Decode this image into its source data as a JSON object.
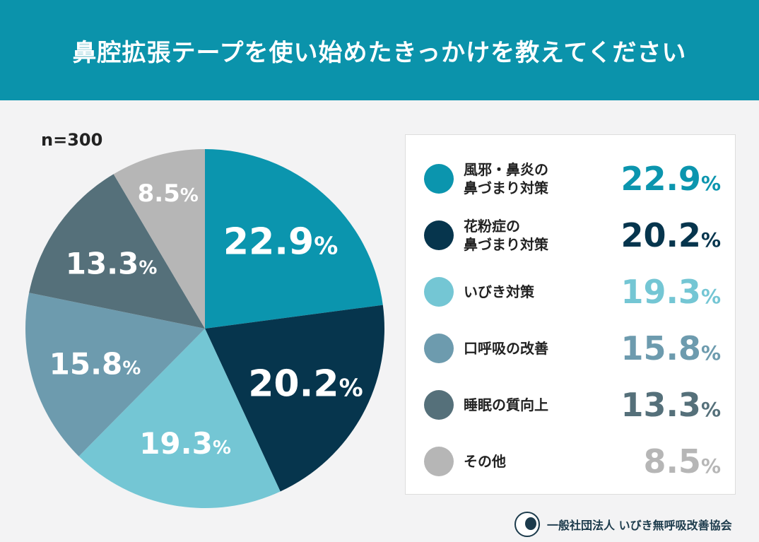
{
  "header": {
    "title": "鼻腔拡張テープを使い始めたきっかけを教えてください"
  },
  "sample": "n=300",
  "chart_data": {
    "type": "pie",
    "title": "鼻腔拡張テープを使い始めたきっかけを教えてください",
    "categories": [
      "風邪・鼻炎の\n鼻づまり対策",
      "花粉症の\n鼻づまり対策",
      "いびき対策",
      "口呼吸の改善",
      "睡眠の質向上",
      "その他"
    ],
    "values": [
      22.9,
      20.2,
      19.3,
      15.8,
      13.3,
      8.5
    ],
    "labels": [
      "22.9",
      "20.2",
      "19.3",
      "15.8",
      "13.3",
      "8.5"
    ],
    "unit": "%",
    "colors": [
      "#0b95ae",
      "#06354d",
      "#74c6d4",
      "#6d9bae",
      "#55707a",
      "#b6b6b6"
    ],
    "label_colors": [
      "#fff",
      "#fff",
      "#fff",
      "#fff",
      "#fff",
      "#fff"
    ],
    "legend_value_colors": [
      "#0b95ae",
      "#06354d",
      "#74c6d4",
      "#6d9bae",
      "#55707a",
      "#b6b6b6"
    ],
    "legend": "right"
  },
  "footer": {
    "org": "一般社団法人 いびき無呼吸改善協会"
  }
}
